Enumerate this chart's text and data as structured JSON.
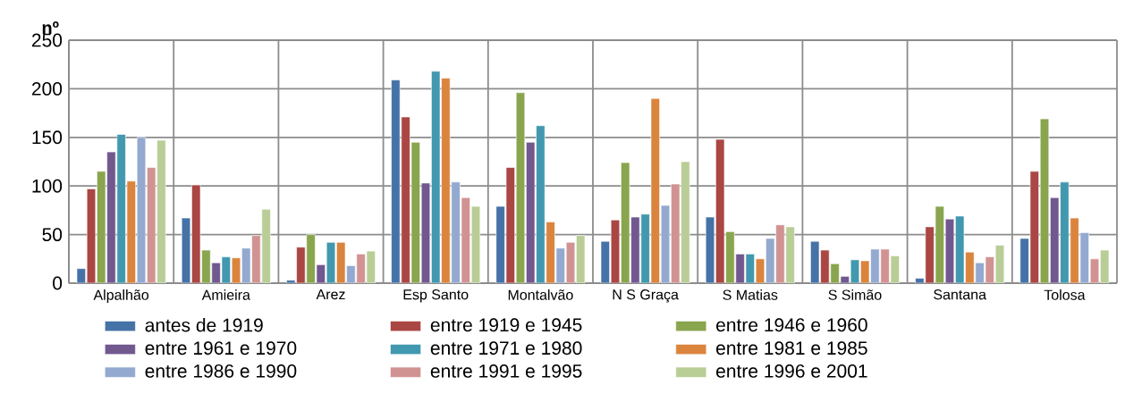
{
  "chart_data": {
    "type": "bar",
    "ylabel": "**nº**",
    "categories": [
      "Alpalhão",
      "Amieira",
      "Arez",
      "Esp Santo",
      "Montalvão",
      "N S Graça",
      "S Matias",
      "S Simão",
      "Santana",
      "Tolosa"
    ],
    "series": [
      {
        "name": "antes de 1919",
        "color": "#4572a7",
        "values": [
          15,
          67,
          3,
          209,
          79,
          43,
          68,
          43,
          5,
          46
        ]
      },
      {
        "name": "entre 1919 e 1945",
        "color": "#aa4643",
        "values": [
          97,
          101,
          37,
          171,
          119,
          65,
          148,
          34,
          58,
          115
        ]
      },
      {
        "name": "entre 1946 e 1960",
        "color": "#89a54e",
        "values": [
          115,
          34,
          50,
          145,
          196,
          124,
          53,
          20,
          79,
          169
        ]
      },
      {
        "name": "entre 1961 e 1970",
        "color": "#71588f",
        "values": [
          135,
          21,
          19,
          103,
          145,
          68,
          30,
          7,
          66,
          88
        ]
      },
      {
        "name": "entre 1971 e 1980",
        "color": "#4198af",
        "values": [
          153,
          27,
          42,
          218,
          162,
          71,
          30,
          24,
          69,
          104
        ]
      },
      {
        "name": "entre 1981 e 1985",
        "color": "#db843d",
        "values": [
          105,
          26,
          42,
          211,
          63,
          190,
          25,
          23,
          32,
          67
        ]
      },
      {
        "name": "entre 1986 e 1990",
        "color": "#93a9cf",
        "values": [
          150,
          36,
          18,
          104,
          36,
          80,
          46,
          35,
          21,
          52
        ]
      },
      {
        "name": "entre 1991 e 1995",
        "color": "#d19392",
        "values": [
          119,
          49,
          30,
          88,
          42,
          102,
          60,
          35,
          27,
          25
        ]
      },
      {
        "name": "entre 1996 e 2001",
        "color": "#b9cd96",
        "values": [
          147,
          76,
          33,
          79,
          49,
          125,
          58,
          28,
          39,
          34
        ]
      }
    ],
    "ylim": [
      0,
      250
    ],
    "yticks": [
      0,
      50,
      100,
      150,
      200,
      250
    ],
    "grid": true,
    "legend": "bottom"
  }
}
